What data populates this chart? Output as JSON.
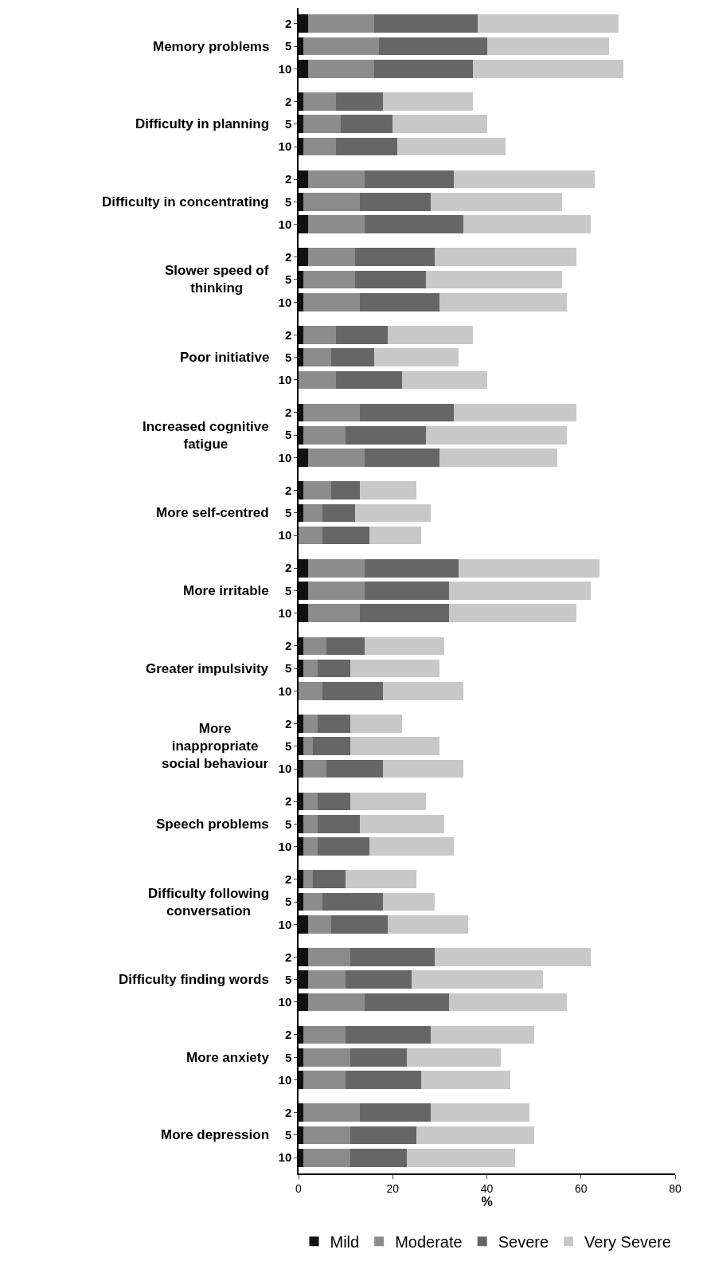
{
  "chart_data": {
    "type": "bar",
    "orientation": "horizontal",
    "stacked": true,
    "xlabel": "%",
    "categories": [
      "2",
      "5",
      "10",
      "2",
      "5",
      "10",
      "2",
      "5",
      "10",
      "2",
      "5",
      "10",
      "2",
      "5",
      "10",
      "2",
      "5",
      "10",
      "2",
      "5",
      "10",
      "2",
      "5",
      "10",
      "2",
      "5",
      "10",
      "2",
      "5",
      "10",
      "2",
      "5",
      "10",
      "2",
      "5",
      "10",
      "2",
      "5",
      "10",
      "2",
      "5",
      "10",
      "2",
      "5",
      "10"
    ],
    "annotations": [
      "Memory problems",
      "Difficulty in planning",
      "Difficulty in concentrating",
      "Slower speed of\nthinking",
      "Poor initiative",
      "Increased cognitive\nfatigue",
      "More self-centred",
      "More irritable",
      "Greater impulsivity",
      "More\ninappropriate\nsocial behaviour",
      "Speech problems",
      "Difficulty following\nconversation",
      "Difficulty finding words",
      "More anxiety",
      "More depression"
    ],
    "series": [
      {
        "name": "Mild",
        "color": "#111111",
        "values": [
          2,
          1,
          2,
          1,
          1,
          1,
          2,
          1,
          2,
          2,
          1,
          1,
          1,
          1,
          0,
          1,
          1,
          2,
          1,
          1,
          0,
          2,
          2,
          2,
          1,
          1,
          0,
          1,
          1,
          1,
          1,
          1,
          1,
          1,
          1,
          2,
          2,
          2,
          2,
          1,
          1,
          1,
          1,
          1,
          1
        ]
      },
      {
        "name": "Moderate",
        "color": "#8c8c8c",
        "values": [
          14,
          16,
          14,
          7,
          8,
          7,
          12,
          12,
          12,
          10,
          11,
          12,
          7,
          6,
          8,
          12,
          9,
          12,
          6,
          4,
          5,
          12,
          12,
          11,
          5,
          3,
          5,
          3,
          2,
          5,
          3,
          3,
          3,
          2,
          4,
          5,
          9,
          8,
          12,
          9,
          10,
          9,
          12,
          10,
          10
        ]
      },
      {
        "name": "Severe",
        "color": "#666666",
        "values": [
          22,
          23,
          21,
          10,
          11,
          13,
          19,
          15,
          21,
          17,
          15,
          17,
          11,
          9,
          14,
          20,
          17,
          16,
          6,
          7,
          10,
          20,
          18,
          19,
          8,
          7,
          13,
          7,
          8,
          12,
          7,
          9,
          11,
          7,
          13,
          12,
          18,
          14,
          18,
          18,
          12,
          16,
          15,
          14,
          12
        ]
      },
      {
        "name": "Very Severe",
        "color": "#c8c8c8",
        "values": [
          30,
          26,
          32,
          19,
          20,
          23,
          30,
          28,
          27,
          30,
          29,
          27,
          18,
          18,
          18,
          26,
          30,
          25,
          12,
          16,
          11,
          30,
          30,
          27,
          17,
          19,
          17,
          11,
          19,
          17,
          16,
          18,
          18,
          15,
          11,
          17,
          33,
          28,
          25,
          22,
          20,
          19,
          21,
          25,
          23
        ]
      }
    ],
    "xlim": [
      0,
      80
    ],
    "xticks": [
      0,
      20,
      40,
      60,
      80
    ],
    "legend": "bottom"
  }
}
